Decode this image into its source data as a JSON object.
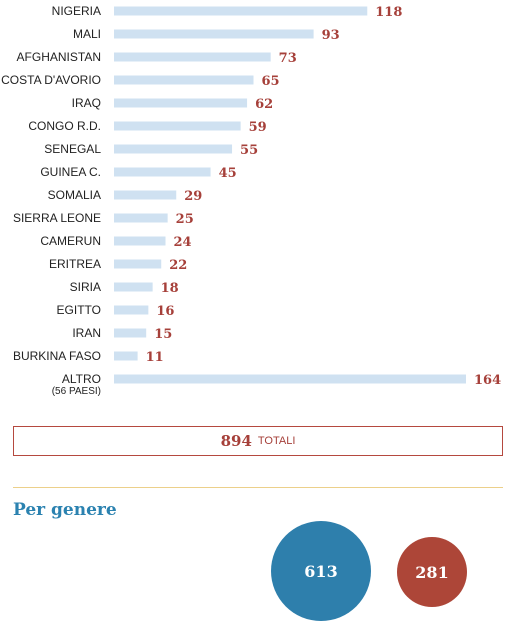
{
  "chart_data": [
    {
      "type": "bar",
      "orientation": "horizontal",
      "categories": [
        "NIGERIA",
        "MALI",
        "AFGHANISTAN",
        "COSTA D'AVORIO",
        "IRAQ",
        "CONGO R.D.",
        "SENEGAL",
        "GUINEA C.",
        "SOMALIA",
        "SIERRA LEONE",
        "CAMERUN",
        "ERITREA",
        "SIRIA",
        "EGITTO",
        "IRAN",
        "BURKINA FASO",
        "ALTRO"
      ],
      "category_sublabels": [
        "",
        "",
        "",
        "",
        "",
        "",
        "",
        "",
        "",
        "",
        "",
        "",
        "",
        "",
        "",
        "",
        "(56 PAESI)"
      ],
      "values": [
        118,
        93,
        73,
        65,
        62,
        59,
        55,
        45,
        29,
        25,
        24,
        22,
        18,
        16,
        15,
        11,
        164
      ],
      "xlim": [
        0,
        164
      ],
      "grid": false,
      "bar_color": "#cfe1f1",
      "label_color": "#a6403a"
    },
    {
      "type": "bubble",
      "title": "Per genere",
      "values": [
        613,
        281
      ],
      "colors": [
        "#2e7fac",
        "#ad4638"
      ]
    }
  ],
  "totals": {
    "value": "894",
    "label": "TOTALI"
  }
}
